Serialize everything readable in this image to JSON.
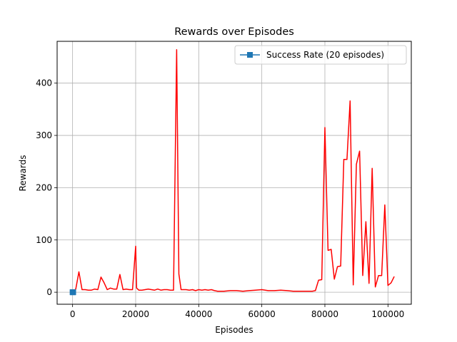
{
  "chart_data": {
    "type": "line",
    "title": "Rewards over Episodes",
    "xlabel": "Episodes",
    "ylabel": "Rewards",
    "xlim": [
      -4900,
      107400
    ],
    "ylim": [
      -23,
      480
    ],
    "xticks": [
      0,
      20000,
      40000,
      60000,
      80000,
      100000
    ],
    "xtick_labels": [
      "0",
      "20000",
      "40000",
      "60000",
      "80000",
      "100000"
    ],
    "yticks": [
      0,
      100,
      200,
      300,
      400
    ],
    "ytick_labels": [
      "0",
      "100",
      "200",
      "300",
      "400"
    ],
    "grid": true,
    "legend_position": "top-right",
    "series": [
      {
        "name": "",
        "style": "line",
        "color": "#ff0000",
        "x": [
          0,
          1000,
          2000,
          3000,
          4000,
          5000,
          6000,
          7000,
          8000,
          9000,
          10000,
          11000,
          12000,
          13000,
          14000,
          15000,
          16000,
          17000,
          18000,
          19000,
          20000,
          20300,
          21000,
          22000,
          23000,
          24000,
          25000,
          26000,
          27000,
          28000,
          29000,
          30000,
          31000,
          32000,
          33000,
          33700,
          34400,
          35000,
          36000,
          37000,
          38000,
          39000,
          40000,
          41000,
          42000,
          43000,
          44000,
          45000,
          46000,
          48000,
          50000,
          52000,
          54000,
          56000,
          58000,
          60000,
          62000,
          64000,
          66000,
          68000,
          70000,
          72000,
          74000,
          76000,
          77000,
          78000,
          79000,
          80000,
          81000,
          82000,
          83000,
          84000,
          85000,
          86000,
          87000,
          88000,
          89000,
          90000,
          91000,
          92000,
          93000,
          94000,
          95000,
          96000,
          97000,
          98000,
          99000,
          100000,
          101000,
          102000
        ],
        "y": [
          0,
          6,
          39,
          5,
          5,
          4,
          4,
          6,
          5,
          29,
          18,
          5,
          8,
          6,
          6,
          34,
          5,
          6,
          5,
          5,
          88,
          8,
          4,
          4,
          5,
          6,
          5,
          4,
          6,
          4,
          5,
          5,
          4,
          4,
          464,
          35,
          5,
          5,
          5,
          4,
          5,
          3,
          5,
          4,
          5,
          4,
          5,
          3,
          2,
          2,
          3,
          3,
          2,
          3,
          4,
          5,
          3,
          3,
          4,
          3,
          2,
          2,
          2,
          2,
          3,
          23,
          24,
          315,
          80,
          82,
          25,
          49,
          50,
          254,
          254,
          366,
          14,
          245,
          270,
          32,
          135,
          17,
          237,
          10,
          32,
          32,
          167,
          13,
          18,
          30
        ]
      },
      {
        "name": "Success Rate (20 episodes)",
        "style": "line-marker",
        "marker": "square",
        "color": "#1f77b4",
        "x": [
          0,
          100,
          200
        ],
        "y": [
          0,
          0,
          0
        ]
      }
    ]
  }
}
